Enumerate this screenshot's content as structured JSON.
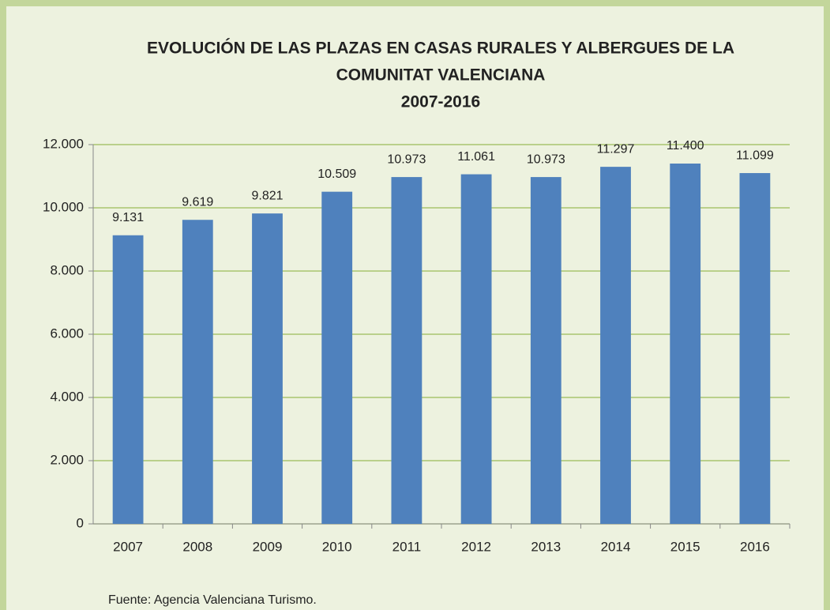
{
  "chart_data": {
    "type": "bar",
    "title": [
      "EVOLUCIÓN DE LAS PLAZAS EN CASAS RURALES Y ALBERGUES DE LA",
      "COMUNITAT VALENCIANA",
      "2007-2016"
    ],
    "categories": [
      "2007",
      "2008",
      "2009",
      "2010",
      "2011",
      "2012",
      "2013",
      "2014",
      "2015",
      "2016"
    ],
    "values": [
      9131,
      9619,
      9821,
      10509,
      10973,
      11061,
      10973,
      11297,
      11400,
      11099
    ],
    "value_labels": [
      "9.131",
      "9.619",
      "9.821",
      "10.509",
      "10.973",
      "11.061",
      "10.973",
      "11.297",
      "11.400",
      "11.099"
    ],
    "color": "#4f81bd",
    "ylim": [
      0,
      12000
    ],
    "yticks": [
      0,
      {
        "value": 2000,
        "label": "2.000"
      },
      {
        "value": 4000,
        "label": "4.000"
      },
      {
        "value": 6000,
        "label": "6.000"
      },
      {
        "value": 8000,
        "label": "8.000"
      },
      {
        "value": 10000,
        "label": "10.000"
      },
      {
        "value": 12000,
        "label": "12.000"
      }
    ],
    "grid": true,
    "source": "Fuente: Agencia Valenciana Turismo."
  }
}
